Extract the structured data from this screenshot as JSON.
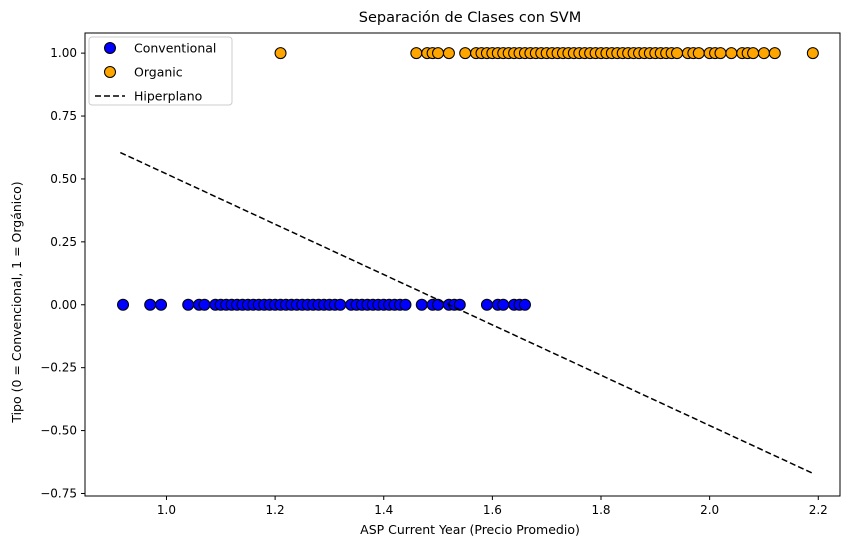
{
  "chart_data": {
    "type": "scatter",
    "title": "Separación de Clases con SVM",
    "xlabel": "ASP Current Year (Precio Promedio)",
    "ylabel": "Tipo (0 = Convencional, 1 = Orgánico)",
    "xlim": [
      0.85,
      2.24
    ],
    "ylim": [
      -0.76,
      1.08
    ],
    "xticks": [
      1.0,
      1.2,
      1.4,
      1.6,
      1.8,
      2.0,
      2.2
    ],
    "xtick_labels": [
      "1.0",
      "1.2",
      "1.4",
      "1.6",
      "1.8",
      "2.0",
      "2.2"
    ],
    "yticks": [
      -0.75,
      -0.5,
      -0.25,
      0.0,
      0.25,
      0.5,
      0.75,
      1.0
    ],
    "ytick_labels": [
      "−0.75",
      "−0.50",
      "−0.25",
      "0.00",
      "0.25",
      "0.50",
      "0.75",
      "1.00"
    ],
    "grid": false,
    "legend_position": "top-left",
    "series": [
      {
        "name": "Conventional",
        "kind": "scatter",
        "color": "#0000ff",
        "edge_color": "#000000",
        "y": 0,
        "x": [
          0.92,
          0.97,
          0.99,
          1.04,
          1.06,
          1.07,
          1.09,
          1.1,
          1.11,
          1.12,
          1.13,
          1.14,
          1.15,
          1.16,
          1.17,
          1.18,
          1.19,
          1.2,
          1.21,
          1.22,
          1.23,
          1.24,
          1.25,
          1.26,
          1.27,
          1.28,
          1.29,
          1.3,
          1.31,
          1.32,
          1.34,
          1.35,
          1.36,
          1.37,
          1.38,
          1.39,
          1.4,
          1.41,
          1.42,
          1.43,
          1.44,
          1.47,
          1.49,
          1.5,
          1.52,
          1.53,
          1.54,
          1.59,
          1.61,
          1.62,
          1.64,
          1.65,
          1.66
        ]
      },
      {
        "name": "Organic",
        "kind": "scatter",
        "color": "#ffa500",
        "edge_color": "#000000",
        "y": 1,
        "x": [
          1.21,
          1.46,
          1.48,
          1.49,
          1.5,
          1.52,
          1.55,
          1.57,
          1.58,
          1.59,
          1.6,
          1.61,
          1.62,
          1.63,
          1.64,
          1.65,
          1.66,
          1.67,
          1.68,
          1.69,
          1.7,
          1.71,
          1.72,
          1.73,
          1.74,
          1.75,
          1.76,
          1.77,
          1.78,
          1.79,
          1.8,
          1.81,
          1.82,
          1.83,
          1.84,
          1.85,
          1.86,
          1.87,
          1.88,
          1.89,
          1.9,
          1.91,
          1.92,
          1.93,
          1.94,
          1.96,
          1.97,
          1.98,
          2.0,
          2.01,
          2.02,
          2.04,
          2.06,
          2.07,
          2.08,
          2.1,
          2.12,
          2.19
        ]
      },
      {
        "name": "Hiperplano",
        "kind": "line",
        "color": "#000000",
        "dash": "dashed",
        "x": [
          0.915,
          2.19
        ],
        "y": [
          0.605,
          -0.67
        ]
      }
    ]
  }
}
